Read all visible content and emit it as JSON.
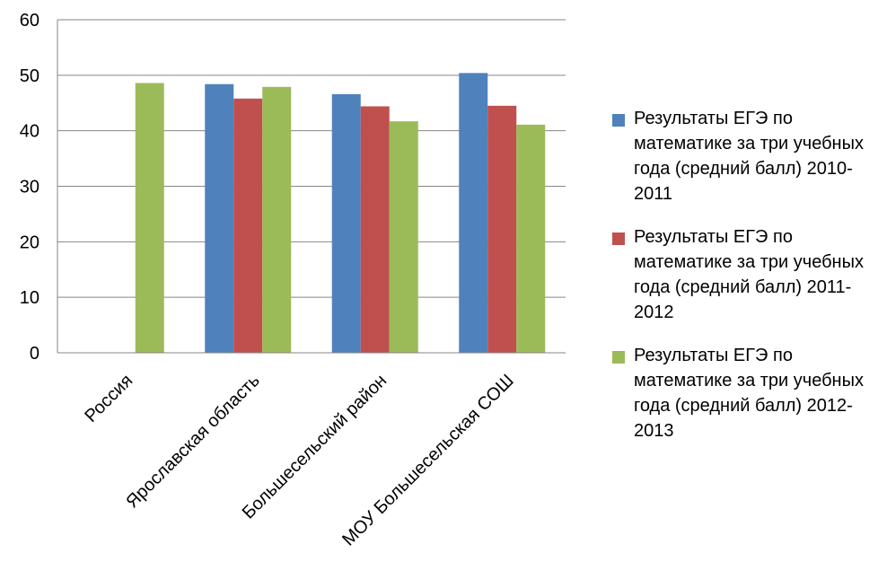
{
  "chart_data": {
    "type": "bar",
    "categories": [
      "Россия",
      "Ярославская область",
      "Большесельский район",
      "МОУ Большесельская СОШ"
    ],
    "series": [
      {
        "name": "Результаты ЕГЭ по математике за три учебных года  (средний балл) 2010-2011",
        "color": "#4f81bd",
        "values": [
          null,
          48.4,
          46.6,
          50.4
        ]
      },
      {
        "name": "Результаты ЕГЭ по математике за три учебных года  (средний балл) 2011-2012",
        "color": "#c0504d",
        "values": [
          null,
          45.8,
          44.4,
          44.5
        ]
      },
      {
        "name": "Результаты ЕГЭ по математике за три учебных года  (средний балл) 2012-2013",
        "color": "#9bbb59",
        "values": [
          48.6,
          47.9,
          41.7,
          41.1
        ]
      }
    ],
    "y_ticks": [
      "0",
      "10",
      "20",
      "30",
      "40",
      "50",
      "60"
    ],
    "ylim": [
      0,
      60
    ],
    "grid": true,
    "legend_position": "right",
    "title": "",
    "xlabel": "",
    "ylabel": ""
  }
}
